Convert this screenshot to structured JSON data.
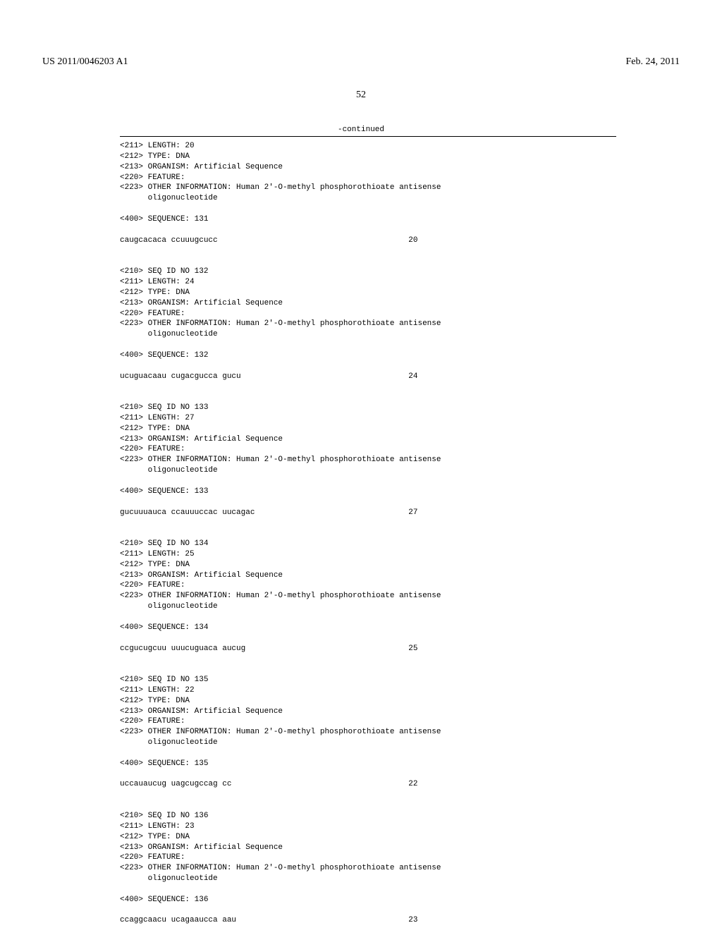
{
  "header": {
    "pubnum": "US 2011/0046203 A1",
    "date": "Feb. 24, 2011",
    "pagenum": "52"
  },
  "continued_label": "-continued",
  "entries": [
    {
      "lines": [
        "<211> LENGTH: 20",
        "<212> TYPE: DNA",
        "<213> ORGANISM: Artificial Sequence",
        "<220> FEATURE:",
        "<223> OTHER INFORMATION: Human 2'-O-methyl phosphorothioate antisense",
        "      oligonucleotide"
      ],
      "seqlabel": "<400> SEQUENCE: 131",
      "seq": "caugcacaca ccuuugcucc",
      "length": "20"
    },
    {
      "lines": [
        "<210> SEQ ID NO 132",
        "<211> LENGTH: 24",
        "<212> TYPE: DNA",
        "<213> ORGANISM: Artificial Sequence",
        "<220> FEATURE:",
        "<223> OTHER INFORMATION: Human 2'-O-methyl phosphorothioate antisense",
        "      oligonucleotide"
      ],
      "seqlabel": "<400> SEQUENCE: 132",
      "seq": "ucuguacaau cugacgucca gucu",
      "length": "24"
    },
    {
      "lines": [
        "<210> SEQ ID NO 133",
        "<211> LENGTH: 27",
        "<212> TYPE: DNA",
        "<213> ORGANISM: Artificial Sequence",
        "<220> FEATURE:",
        "<223> OTHER INFORMATION: Human 2'-O-methyl phosphorothioate antisense",
        "      oligonucleotide"
      ],
      "seqlabel": "<400> SEQUENCE: 133",
      "seq": "gucuuuauca ccauuuccac uucagac",
      "length": "27"
    },
    {
      "lines": [
        "<210> SEQ ID NO 134",
        "<211> LENGTH: 25",
        "<212> TYPE: DNA",
        "<213> ORGANISM: Artificial Sequence",
        "<220> FEATURE:",
        "<223> OTHER INFORMATION: Human 2'-O-methyl phosphorothioate antisense",
        "      oligonucleotide"
      ],
      "seqlabel": "<400> SEQUENCE: 134",
      "seq": "ccgucugcuu uuucuguaca aucug",
      "length": "25"
    },
    {
      "lines": [
        "<210> SEQ ID NO 135",
        "<211> LENGTH: 22",
        "<212> TYPE: DNA",
        "<213> ORGANISM: Artificial Sequence",
        "<220> FEATURE:",
        "<223> OTHER INFORMATION: Human 2'-O-methyl phosphorothioate antisense",
        "      oligonucleotide"
      ],
      "seqlabel": "<400> SEQUENCE: 135",
      "seq": "uccauaucug uagcugccag cc",
      "length": "22"
    },
    {
      "lines": [
        "<210> SEQ ID NO 136",
        "<211> LENGTH: 23",
        "<212> TYPE: DNA",
        "<213> ORGANISM: Artificial Sequence",
        "<220> FEATURE:",
        "<223> OTHER INFORMATION: Human 2'-O-methyl phosphorothioate antisense",
        "      oligonucleotide"
      ],
      "seqlabel": "<400> SEQUENCE: 136",
      "seq": "ccaggcaacu ucagaaucca aau",
      "length": "23"
    }
  ]
}
